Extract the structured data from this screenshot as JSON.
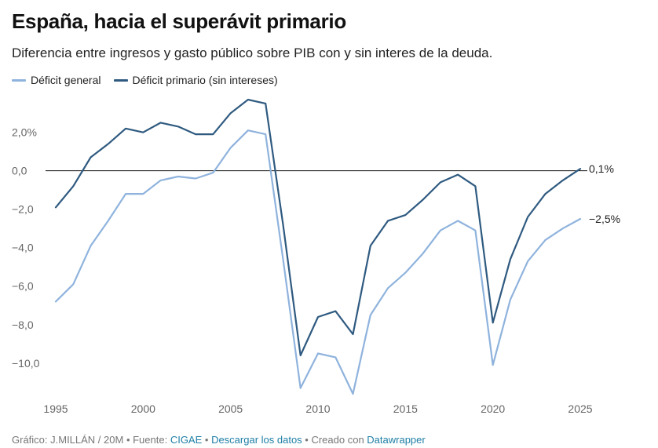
{
  "header": {
    "title": "España, hacia el superávit primario",
    "subtitle": "Diferencia entre ingresos y gasto público sobre PIB con y sin interes de la deuda."
  },
  "colors": {
    "general": "#8fb3dd",
    "primario": "#2f5a80",
    "zero": "#111111",
    "tick": "#666666"
  },
  "chart_data": {
    "type": "line",
    "x": [
      1995,
      1996,
      1997,
      1998,
      1999,
      2000,
      2001,
      2002,
      2003,
      2004,
      2005,
      2006,
      2007,
      2008,
      2009,
      2010,
      2011,
      2012,
      2013,
      2014,
      2015,
      2016,
      2017,
      2018,
      2019,
      2020,
      2021,
      2022,
      2023,
      2024,
      2025
    ],
    "series": [
      {
        "name": "Déficit general",
        "values": [
          -6.8,
          -5.9,
          -3.9,
          -2.6,
          -1.2,
          -1.2,
          -0.5,
          -0.3,
          -0.4,
          -0.1,
          1.2,
          2.1,
          1.9,
          -4.6,
          -11.3,
          -9.5,
          -9.7,
          -11.6,
          -7.5,
          -6.1,
          -5.3,
          -4.3,
          -3.1,
          -2.6,
          -3.1,
          -10.1,
          -6.7,
          -4.7,
          -3.6,
          -3.0,
          -2.5
        ],
        "end_label": "−2,5%"
      },
      {
        "name": "Déficit primario (sin intereses)",
        "values": [
          -1.9,
          -0.8,
          0.7,
          1.4,
          2.2,
          2.0,
          2.5,
          2.3,
          1.9,
          1.9,
          3.0,
          3.7,
          3.5,
          -2.8,
          -9.6,
          -7.6,
          -7.3,
          -8.5,
          -3.9,
          -2.6,
          -2.3,
          -1.5,
          -0.6,
          -0.2,
          -0.8,
          -7.9,
          -4.6,
          -2.4,
          -1.2,
          -0.5,
          0.1
        ],
        "end_label": "0,1%"
      }
    ],
    "y_ticks": [
      {
        "v": 2,
        "label": "2,0%"
      },
      {
        "v": 0,
        "label": "0,0"
      },
      {
        "v": -2,
        "label": "−2,0"
      },
      {
        "v": -4,
        "label": "−4,0"
      },
      {
        "v": -6,
        "label": "−6,0"
      },
      {
        "v": -8,
        "label": "−8,0"
      },
      {
        "v": -10,
        "label": "−10,0"
      }
    ],
    "x_ticks": [
      {
        "v": 1995,
        "label": "1995"
      },
      {
        "v": 2000,
        "label": "2000"
      },
      {
        "v": 2005,
        "label": "2005"
      },
      {
        "v": 2010,
        "label": "2010"
      },
      {
        "v": 2015,
        "label": "2015"
      },
      {
        "v": 2020,
        "label": "2020"
      },
      {
        "v": 2025,
        "label": "2025"
      }
    ],
    "xlim": [
      1995,
      2025
    ],
    "ylim": [
      -11.6,
      3.7
    ],
    "grid": false,
    "legend_position": "top-left"
  },
  "footer": {
    "prefix": "Gráfico: J.MILLÁN / 20M",
    "sep1": " • Fuente: ",
    "source_link": "CIGAE",
    "sep2": " • ",
    "download_link": "Descargar los datos",
    "sep3": " • Creado con ",
    "tool_link": "Datawrapper"
  }
}
